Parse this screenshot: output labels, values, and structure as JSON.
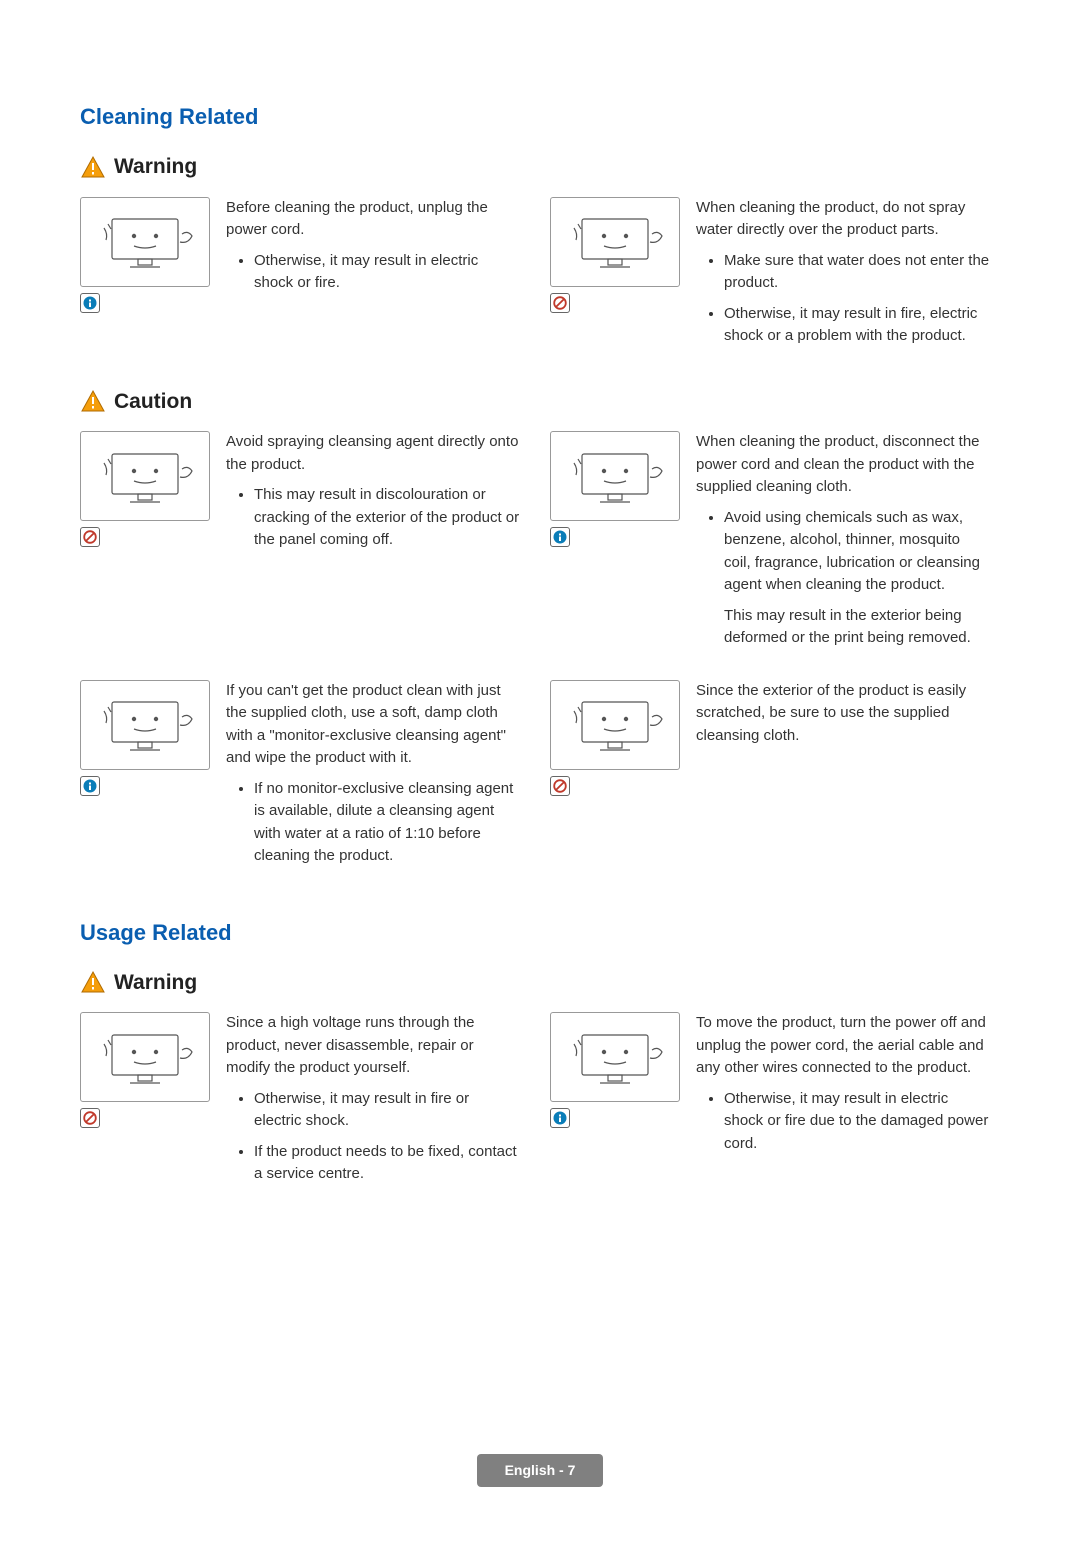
{
  "colors": {
    "section_title": "#0a5eb0",
    "text": "#333333",
    "warning_fill": "#f59e0b",
    "badge_info_fill": "#0a7db8",
    "badge_prohibit_stroke": "#c0392b",
    "footer_bg": "#808080",
    "footer_text": "#ffffff"
  },
  "sections": [
    {
      "title": "Cleaning Related",
      "groups": [
        {
          "label": "Warning",
          "items": [
            {
              "badge": "info",
              "main": "Before cleaning the product, unplug the power cord.",
              "bullets": [
                "Otherwise, it may result in electric shock or fire."
              ]
            },
            {
              "badge": "prohibit",
              "main": "When cleaning the product, do not spray water directly over the product parts.",
              "bullets": [
                "Make sure that water does not enter the product.",
                "Otherwise, it may result in fire, electric shock or a problem with the product."
              ]
            }
          ]
        },
        {
          "label": "Caution",
          "items": [
            {
              "badge": "prohibit",
              "main": "Avoid spraying cleansing agent directly onto the product.",
              "bullets": [
                "This may result in discolouration or cracking of the exterior of the product or the panel coming off."
              ]
            },
            {
              "badge": "info",
              "main": "When cleaning the product, disconnect the power cord and clean the product with the supplied cleaning cloth.",
              "bullets": [
                "Avoid using chemicals such as wax, benzene, alcohol, thinner, mosquito coil, fragrance, lubrication or cleansing agent when cleaning the product."
              ],
              "sub": "This may result in the exterior being deformed or the print being removed."
            },
            {
              "badge": "info",
              "main": "If you can't get the product clean with just the supplied cloth, use a soft, damp cloth with a \"monitor-exclusive cleansing agent\" and wipe the product with it.",
              "bullets": [
                "If no monitor-exclusive cleansing agent is available, dilute a cleansing agent with water at a ratio of 1:10 before cleaning the product."
              ]
            },
            {
              "badge": "prohibit",
              "main": "Since the exterior of the product is easily scratched, be sure to use the supplied cleansing cloth.",
              "bullets": []
            }
          ]
        }
      ]
    },
    {
      "title": "Usage Related",
      "groups": [
        {
          "label": "Warning",
          "items": [
            {
              "badge": "prohibit",
              "main": "Since a high voltage runs through the product, never disassemble, repair or modify the product yourself.",
              "bullets": [
                "Otherwise, it may result in fire or electric shock.",
                "If the product needs to be fixed, contact a service centre."
              ]
            },
            {
              "badge": "info",
              "main": "To move the product, turn the power off and unplug the power cord, the aerial cable and any other wires connected to the product.",
              "bullets": [
                "Otherwise, it may result in electric shock or fire due to the damaged power cord."
              ]
            }
          ]
        }
      ]
    }
  ],
  "footer": "English - 7"
}
